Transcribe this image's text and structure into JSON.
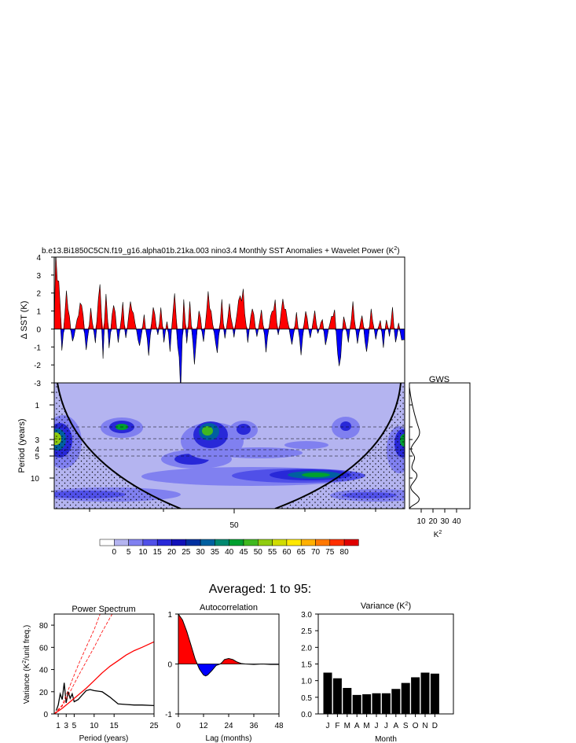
{
  "main_title": "b.e13.Bi1850C5CN.f19_g16.alpha01b.21ka.003 nino3.4 Monthly SST Anomalies + Wavelet Power (K",
  "main_title_sup": "2",
  "main_title_end": ")",
  "averaged_title": "Averaged: 1 to 95:",
  "colors": {
    "positive": "#ff0000",
    "negative": "#0000ff",
    "wavelet_bg": "#b4b4f0",
    "spectrum_line": "#ff0000"
  },
  "chart_data": [
    {
      "id": "sst_timeseries",
      "type": "area",
      "ylabel": "Δ SST (K)",
      "ylim": [
        -3,
        4
      ],
      "yticks": [
        "4",
        "3",
        "2",
        "1",
        "0",
        "-1",
        "-2",
        "-3"
      ],
      "peaks": [
        {
          "x": 1,
          "y": 4.0
        },
        {
          "x": 4,
          "y": 1.4
        },
        {
          "x": 5,
          "y": -1.4
        },
        {
          "x": 8,
          "y": 2.0
        },
        {
          "x": 12,
          "y": -0.8
        },
        {
          "x": 15,
          "y": 0.5
        },
        {
          "x": 18,
          "y": 1.6
        },
        {
          "x": 21,
          "y": -1.2
        },
        {
          "x": 24,
          "y": 1.0
        },
        {
          "x": 27,
          "y": -0.7
        },
        {
          "x": 30,
          "y": 2.8
        },
        {
          "x": 32,
          "y": -1.4
        },
        {
          "x": 34,
          "y": 2.2
        },
        {
          "x": 36,
          "y": -1.1
        },
        {
          "x": 39,
          "y": 1.6
        },
        {
          "x": 42,
          "y": -0.8
        },
        {
          "x": 45,
          "y": 1.3
        },
        {
          "x": 47,
          "y": -0.6
        },
        {
          "x": 50,
          "y": 1.5
        },
        {
          "x": 53,
          "y": 0.4
        },
        {
          "x": 56,
          "y": -1.0
        },
        {
          "x": 59,
          "y": 0.7
        },
        {
          "x": 62,
          "y": -1.3
        },
        {
          "x": 65,
          "y": 1.3
        },
        {
          "x": 68,
          "y": -0.4
        },
        {
          "x": 70,
          "y": 1.1
        },
        {
          "x": 72,
          "y": -0.7
        },
        {
          "x": 74,
          "y": 0.5
        },
        {
          "x": 76,
          "y": -1.1
        },
        {
          "x": 79,
          "y": 2.1
        },
        {
          "x": 81,
          "y": -0.8
        },
        {
          "x": 83,
          "y": -3.0
        },
        {
          "x": 85,
          "y": 1.7
        },
        {
          "x": 87,
          "y": -0.9
        },
        {
          "x": 89,
          "y": 1.3
        },
        {
          "x": 92,
          "y": -1.9
        },
        {
          "x": 95,
          "y": 1.2
        },
        {
          "x": 98,
          "y": -0.8
        },
        {
          "x": 101,
          "y": 1.9
        },
        {
          "x": 104,
          "y": 0.3
        },
        {
          "x": 107,
          "y": -1.3
        },
        {
          "x": 110,
          "y": 1.4
        },
        {
          "x": 112,
          "y": -0.6
        },
        {
          "x": 115,
          "y": 1.3
        },
        {
          "x": 118,
          "y": -0.4
        },
        {
          "x": 121,
          "y": 1.6
        },
        {
          "x": 124,
          "y": 1.9
        },
        {
          "x": 127,
          "y": -0.7
        },
        {
          "x": 130,
          "y": 1.3
        },
        {
          "x": 133,
          "y": -0.5
        },
        {
          "x": 136,
          "y": 1.0
        },
        {
          "x": 139,
          "y": -1.1
        },
        {
          "x": 142,
          "y": 0.7
        },
        {
          "x": 145,
          "y": 1.4
        },
        {
          "x": 147,
          "y": -0.4
        },
        {
          "x": 150,
          "y": 1.6
        },
        {
          "x": 153,
          "y": 0.6
        },
        {
          "x": 156,
          "y": -0.9
        },
        {
          "x": 159,
          "y": 0.8
        },
        {
          "x": 162,
          "y": -1.3
        },
        {
          "x": 165,
          "y": 1.1
        },
        {
          "x": 168,
          "y": -0.6
        },
        {
          "x": 171,
          "y": 1.0
        },
        {
          "x": 173,
          "y": -0.3
        },
        {
          "x": 176,
          "y": 0.6
        },
        {
          "x": 178,
          "y": -0.9
        },
        {
          "x": 181,
          "y": 0.4
        },
        {
          "x": 184,
          "y": 1.0
        },
        {
          "x": 187,
          "y": -2.4
        },
        {
          "x": 190,
          "y": 0.8
        },
        {
          "x": 193,
          "y": -0.7
        },
        {
          "x": 196,
          "y": 1.3
        },
        {
          "x": 199,
          "y": -0.8
        },
        {
          "x": 202,
          "y": 0.9
        },
        {
          "x": 205,
          "y": -1.4
        },
        {
          "x": 208,
          "y": 1.0
        },
        {
          "x": 211,
          "y": -0.5
        },
        {
          "x": 214,
          "y": 0.5
        },
        {
          "x": 216,
          "y": -0.9
        },
        {
          "x": 218,
          "y": 0.6
        },
        {
          "x": 220,
          "y": -0.4
        },
        {
          "x": 222,
          "y": 1.1
        },
        {
          "x": 224,
          "y": -0.9
        },
        {
          "x": 226,
          "y": 0.3
        },
        {
          "x": 228,
          "y": -0.6
        }
      ]
    },
    {
      "id": "wavelet",
      "type": "heatmap",
      "ylabel": "Period (years)",
      "yticks": [
        "1",
        "3",
        "4",
        "5",
        "10"
      ],
      "xticks": [
        "50"
      ]
    },
    {
      "id": "gws",
      "type": "line",
      "title": "GWS",
      "xticks": [
        "10",
        "20",
        "30",
        "40"
      ],
      "xlabel": "K",
      "xlabel_sup": "2"
    },
    {
      "id": "colorbar",
      "type": "heatmap",
      "levels": [
        "0",
        "5",
        "10",
        "15",
        "20",
        "25",
        "30",
        "35",
        "40",
        "45",
        "50",
        "55",
        "60",
        "65",
        "70",
        "75",
        "80"
      ],
      "colors": [
        "#ffffff",
        "#b4b4f0",
        "#8080f0",
        "#5050e8",
        "#2828d8",
        "#1010b8",
        "#0030a0",
        "#0060a0",
        "#008870",
        "#00a030",
        "#40b820",
        "#90cc10",
        "#d0dc00",
        "#ffe800",
        "#ffb000",
        "#ff7800",
        "#ff3000",
        "#e00000"
      ]
    },
    {
      "id": "power_spectrum",
      "type": "line",
      "title": "Power Spectrum",
      "xlabel": "Period (years)",
      "ylabel": "Variance (K",
      "ylabel_sup": "2",
      "ylabel_end": "/unit freq.)",
      "xlim": [
        0,
        25
      ],
      "ylim": [
        0,
        90
      ],
      "xticks": [
        "1",
        "3",
        "5",
        "10",
        "15",
        "25"
      ],
      "yticks": [
        "0",
        "20",
        "40",
        "60",
        "80"
      ],
      "series": [
        {
          "x": [
            0.5,
            1,
            1.5,
            2,
            2.5,
            3,
            3.5,
            4,
            4.5,
            5,
            6,
            7,
            8,
            9,
            10,
            12,
            14,
            16,
            18,
            20,
            22,
            25
          ],
          "y": [
            3,
            8,
            18,
            13,
            28,
            10,
            20,
            14,
            18,
            11,
            13,
            17,
            21,
            22,
            21,
            20,
            15,
            9,
            8.5,
            8,
            8,
            7.5
          ]
        },
        {
          "x": [
            0,
            2,
            4,
            6,
            8,
            10,
            12,
            14,
            16,
            18,
            20,
            22,
            25
          ],
          "y": [
            0,
            5,
            11,
            17,
            23,
            30,
            37,
            43,
            48,
            53,
            57,
            60,
            65
          ]
        },
        {
          "x": [
            0,
            2,
            4,
            6,
            8,
            10,
            11.5
          ],
          "y": [
            0,
            8,
            26,
            44,
            60,
            76,
            90
          ]
        },
        {
          "x": [
            0,
            2,
            4,
            6,
            8,
            10,
            12,
            14.5
          ],
          "y": [
            0,
            7,
            20,
            34,
            47,
            60,
            74,
            90
          ]
        }
      ]
    },
    {
      "id": "autocorrelation",
      "type": "area",
      "title": "Autocorrelation",
      "xlabel": "Lag (months)",
      "xlim": [
        0,
        48
      ],
      "ylim": [
        -1,
        1
      ],
      "xticks": [
        "0",
        "12",
        "24",
        "36",
        "48"
      ],
      "yticks": [
        "1",
        "0",
        "-1"
      ],
      "x": [
        0,
        2,
        4,
        6,
        8,
        9,
        10,
        12,
        13,
        14,
        16,
        18,
        20,
        21,
        22,
        24,
        26,
        28,
        30,
        32,
        36,
        40,
        44,
        48
      ],
      "y": [
        1,
        0.88,
        0.65,
        0.38,
        0.1,
        0,
        -0.1,
        -0.22,
        -0.24,
        -0.22,
        -0.13,
        -0.03,
        0,
        0.04,
        0.09,
        0.11,
        0.09,
        0.04,
        0.01,
        0,
        -0.01,
        0,
        -0.01,
        -0.01
      ]
    },
    {
      "id": "variance",
      "type": "bar",
      "title": "Variance (K",
      "title_sup": "2",
      "title_end": ")",
      "xlabel": "Month",
      "categories": [
        "J",
        "F",
        "M",
        "A",
        "M",
        "J",
        "J",
        "A",
        "S",
        "O",
        "N",
        "D"
      ],
      "values": [
        1.24,
        1.07,
        0.78,
        0.57,
        0.59,
        0.62,
        0.62,
        0.75,
        0.93,
        1.1,
        1.24,
        1.21
      ],
      "ylim": [
        0,
        3
      ],
      "yticks": [
        "0.0",
        "0.5",
        "1.0",
        "1.5",
        "2.0",
        "2.5",
        "3.0"
      ]
    }
  ]
}
